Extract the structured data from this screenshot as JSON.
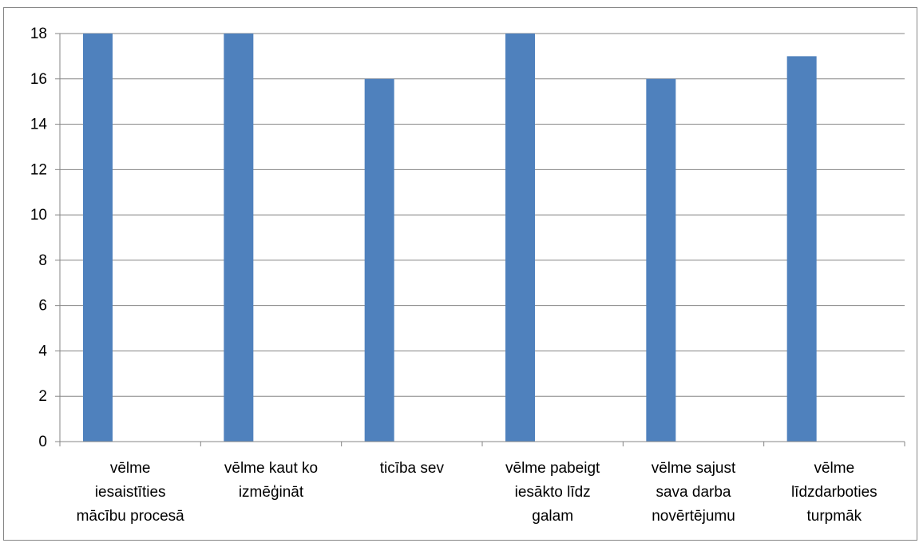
{
  "chart_data": {
    "type": "bar",
    "categories": [
      [
        "vēlme",
        "iesaistīties",
        "mācību procesā"
      ],
      [
        "vēlme kaut ko",
        "izmēģināt"
      ],
      [
        "ticība sev"
      ],
      [
        "vēlme pabeigt",
        "iesākto līdz",
        "galam"
      ],
      [
        "vēlme sajust",
        "sava darba",
        "novērtējumu"
      ],
      [
        "vēlme",
        "līdzdarboties",
        "turpmāk"
      ]
    ],
    "values": [
      18,
      18,
      16,
      18,
      16,
      17
    ],
    "ylim": [
      0,
      18
    ],
    "yticks": [
      0,
      2,
      4,
      6,
      8,
      10,
      12,
      14,
      16,
      18
    ],
    "grid": true,
    "legend": "none",
    "title": "",
    "xlabel": "",
    "ylabel": ""
  },
  "colors": {
    "bar": "#4f81bd",
    "grid": "#868686",
    "axis": "#868686",
    "text": "#000000"
  }
}
